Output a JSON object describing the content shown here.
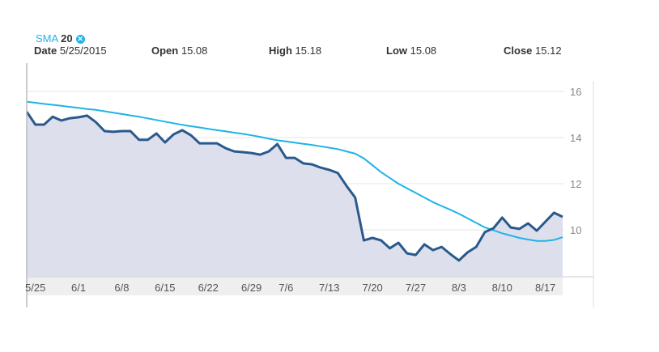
{
  "legend": {
    "indicator": "SMA",
    "period": "20",
    "remove_icon": "close-circle-icon"
  },
  "info": {
    "date_label": "Date",
    "date": "5/25/2015",
    "open_label": "Open",
    "open": "15.08",
    "high_label": "High",
    "high": "15.18",
    "low_label": "Low",
    "low": "15.08",
    "close_label": "Close",
    "close": "15.12"
  },
  "colors": {
    "price": "#2a5a8c",
    "sma": "#1fb3e8",
    "area": "#dde0ec"
  },
  "chart_data": {
    "type": "area",
    "ylim": [
      7.96,
      16.6
    ],
    "yticks": [
      10,
      12,
      14,
      16
    ],
    "grid": true,
    "x_tick_labels": [
      "5/25",
      "6/1",
      "6/8",
      "6/15",
      "6/22",
      "6/29",
      "7/6",
      "7/13",
      "7/20",
      "7/27",
      "8/3",
      "8/10",
      "8/17"
    ],
    "dates": [
      "5/26",
      "5/27",
      "5/28",
      "5/29",
      "6/1",
      "6/2",
      "6/3",
      "6/4",
      "6/5",
      "6/8",
      "6/9",
      "6/10",
      "6/11",
      "6/12",
      "6/15",
      "6/16",
      "6/17",
      "6/18",
      "6/19",
      "6/22",
      "6/23",
      "6/24",
      "6/25",
      "6/26",
      "6/29",
      "6/30",
      "7/1",
      "7/2",
      "7/6",
      "7/7",
      "7/8",
      "7/9",
      "7/10",
      "7/13",
      "7/14",
      "7/15",
      "7/16",
      "7/17",
      "7/20",
      "7/21",
      "7/22",
      "7/23",
      "7/24",
      "7/27",
      "7/28",
      "7/29",
      "7/30",
      "7/31",
      "8/3",
      "8/4",
      "8/5",
      "8/6",
      "8/7",
      "8/10",
      "8/11",
      "8/12",
      "8/13",
      "8/14",
      "8/17",
      "8/18",
      "8/19",
      "8/20",
      "8/21"
    ],
    "series": [
      {
        "key": "close",
        "values": [
          15.12,
          14.56,
          14.56,
          14.9,
          14.74,
          14.84,
          14.88,
          14.95,
          14.67,
          14.28,
          14.25,
          14.28,
          14.28,
          13.9,
          13.9,
          14.18,
          13.79,
          14.14,
          14.32,
          14.1,
          13.75,
          13.75,
          13.75,
          13.54,
          13.4,
          13.37,
          13.33,
          13.26,
          13.4,
          13.72,
          13.12,
          13.12,
          12.88,
          12.84,
          12.7,
          12.6,
          12.46,
          11.9,
          11.4,
          9.54,
          9.65,
          9.54,
          9.2,
          9.44,
          8.98,
          8.91,
          9.37,
          9.12,
          9.26,
          8.95,
          8.67,
          9.02,
          9.26,
          9.9,
          10.07,
          10.53,
          10.1,
          10.04,
          10.28,
          9.96,
          10.35,
          10.74,
          10.56
        ]
      },
      {
        "key": "sma",
        "name": "SMA 20",
        "values": [
          15.55,
          15.51,
          15.46,
          15.42,
          15.38,
          15.33,
          15.29,
          15.24,
          15.2,
          15.14,
          15.08,
          15.02,
          14.96,
          14.9,
          14.83,
          14.76,
          14.69,
          14.62,
          14.55,
          14.49,
          14.44,
          14.38,
          14.32,
          14.27,
          14.21,
          14.16,
          14.1,
          14.03,
          13.95,
          13.88,
          13.83,
          13.78,
          13.73,
          13.68,
          13.62,
          13.56,
          13.5,
          13.4,
          13.3,
          13.1,
          12.8,
          12.5,
          12.25,
          12.0,
          11.8,
          11.6,
          11.4,
          11.2,
          11.03,
          10.87,
          10.7,
          10.5,
          10.3,
          10.1,
          9.98,
          9.85,
          9.75,
          9.65,
          9.58,
          9.52,
          9.52,
          9.56,
          9.68
        ]
      }
    ]
  }
}
